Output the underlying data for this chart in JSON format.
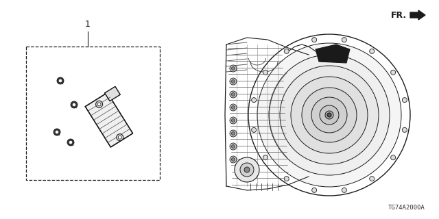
{
  "bg_color": "#ffffff",
  "line_color": "#1a1a1a",
  "label_1": "1",
  "fr_label": "FR.",
  "diagram_code": "TG74A2000A",
  "fig_w": 6.4,
  "fig_h": 3.2,
  "dpi": 100
}
